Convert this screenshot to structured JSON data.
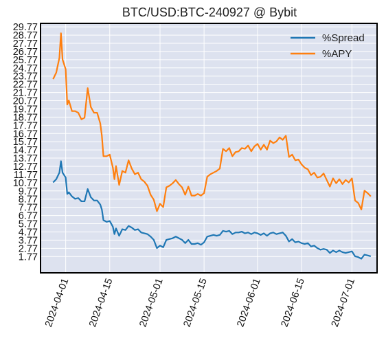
{
  "chart_data": {
    "type": "line",
    "title": "BTC/USD:BTC-240927 @ Bybit",
    "xlabel": "",
    "ylabel": "",
    "legend_position": "top-right",
    "grid": true,
    "background": "#dde2ef",
    "x_ticks": [
      "2024-04-01",
      "2024-04-15",
      "2024-05-01",
      "2024-05-15",
      "2024-06-01",
      "2024-06-15",
      "2024-07-01"
    ],
    "x_range": [
      "2024-03-24",
      "2024-07-09"
    ],
    "y_ticks": [
      "1.77",
      "2.77",
      "3.77",
      "4.77",
      "5.77",
      "6.77",
      "7.77",
      "8.77",
      "9.77",
      "10.77",
      "11.77",
      "12.77",
      "13.77",
      "14.77",
      "15.77",
      "16.77",
      "17.77",
      "18.77",
      "19.77",
      "20.77",
      "21.77",
      "22.77",
      "23.77",
      "24.77",
      "25.77",
      "26.77",
      "27.77",
      "28.77",
      "29.77"
    ],
    "ylim": [
      -0.22,
      30.2
    ],
    "series": [
      {
        "name": "%Spread",
        "color": "#1f77b4",
        "points": [
          [
            "2024-03-28",
            10.8
          ],
          [
            "2024-03-29",
            11.2
          ],
          [
            "2024-03-30",
            12.0
          ],
          [
            "2024-03-30T12",
            13.4
          ],
          [
            "2024-03-31",
            12.0
          ],
          [
            "2024-04-01",
            11.4
          ],
          [
            "2024-04-01T12",
            9.4
          ],
          [
            "2024-04-02",
            9.6
          ],
          [
            "2024-04-03",
            9.1
          ],
          [
            "2024-04-04",
            8.8
          ],
          [
            "2024-04-05",
            8.9
          ],
          [
            "2024-04-06",
            8.5
          ],
          [
            "2024-04-07",
            8.5
          ],
          [
            "2024-04-08",
            10.0
          ],
          [
            "2024-04-09",
            9.0
          ],
          [
            "2024-04-10",
            8.6
          ],
          [
            "2024-04-11",
            8.6
          ],
          [
            "2024-04-12",
            8.1
          ],
          [
            "2024-04-12T12",
            7.5
          ],
          [
            "2024-04-13",
            6.2
          ],
          [
            "2024-04-14",
            6.0
          ],
          [
            "2024-04-15",
            6.1
          ],
          [
            "2024-04-16",
            5.4
          ],
          [
            "2024-04-16T12",
            4.5
          ],
          [
            "2024-04-17",
            5.2
          ],
          [
            "2024-04-18",
            4.3
          ],
          [
            "2024-04-19",
            5.1
          ],
          [
            "2024-04-20",
            5.0
          ],
          [
            "2024-04-21",
            5.5
          ],
          [
            "2024-04-22",
            5.3
          ],
          [
            "2024-04-23",
            5.0
          ],
          [
            "2024-04-24",
            5.1
          ],
          [
            "2024-04-25",
            4.7
          ],
          [
            "2024-04-26",
            4.6
          ],
          [
            "2024-04-27",
            4.5
          ],
          [
            "2024-04-28",
            4.2
          ],
          [
            "2024-04-29",
            3.8
          ],
          [
            "2024-04-30",
            2.8
          ],
          [
            "2024-05-01",
            3.1
          ],
          [
            "2024-05-02",
            2.9
          ],
          [
            "2024-05-03",
            3.8
          ],
          [
            "2024-05-04",
            3.9
          ],
          [
            "2024-05-05",
            4.0
          ],
          [
            "2024-05-06",
            4.2
          ],
          [
            "2024-05-07",
            4.0
          ],
          [
            "2024-05-08",
            3.8
          ],
          [
            "2024-05-09",
            3.4
          ],
          [
            "2024-05-10",
            3.8
          ],
          [
            "2024-05-11",
            3.3
          ],
          [
            "2024-05-12",
            3.3
          ],
          [
            "2024-05-13",
            3.4
          ],
          [
            "2024-05-14",
            3.2
          ],
          [
            "2024-05-15",
            3.5
          ],
          [
            "2024-05-16",
            4.2
          ],
          [
            "2024-05-17",
            4.3
          ],
          [
            "2024-05-18",
            4.4
          ],
          [
            "2024-05-19",
            4.3
          ],
          [
            "2024-05-20",
            4.4
          ],
          [
            "2024-05-21",
            4.9
          ],
          [
            "2024-05-22",
            4.8
          ],
          [
            "2024-05-23",
            4.9
          ],
          [
            "2024-05-24",
            4.5
          ],
          [
            "2024-05-25",
            4.7
          ],
          [
            "2024-05-26",
            4.7
          ],
          [
            "2024-05-27",
            4.8
          ],
          [
            "2024-05-28",
            4.6
          ],
          [
            "2024-05-29",
            4.7
          ],
          [
            "2024-05-30",
            4.5
          ],
          [
            "2024-05-31",
            4.7
          ],
          [
            "2024-06-01",
            4.6
          ],
          [
            "2024-06-02",
            4.4
          ],
          [
            "2024-06-03",
            4.6
          ],
          [
            "2024-06-04",
            4.3
          ],
          [
            "2024-06-05",
            4.6
          ],
          [
            "2024-06-06",
            4.7
          ],
          [
            "2024-06-07",
            4.5
          ],
          [
            "2024-06-08",
            4.6
          ],
          [
            "2024-06-09",
            4.7
          ],
          [
            "2024-06-10",
            4.3
          ],
          [
            "2024-06-11",
            3.6
          ],
          [
            "2024-06-12",
            3.9
          ],
          [
            "2024-06-13",
            3.5
          ],
          [
            "2024-06-14",
            3.6
          ],
          [
            "2024-06-15",
            3.4
          ],
          [
            "2024-06-16",
            3.3
          ],
          [
            "2024-06-17",
            3.4
          ],
          [
            "2024-06-18",
            3.0
          ],
          [
            "2024-06-19",
            3.1
          ],
          [
            "2024-06-20",
            2.8
          ],
          [
            "2024-06-21",
            2.6
          ],
          [
            "2024-06-22",
            2.7
          ],
          [
            "2024-06-23",
            2.6
          ],
          [
            "2024-06-24",
            2.2
          ],
          [
            "2024-06-25",
            2.5
          ],
          [
            "2024-06-26",
            2.3
          ],
          [
            "2024-06-27",
            2.5
          ],
          [
            "2024-06-28",
            2.3
          ],
          [
            "2024-06-29",
            2.2
          ],
          [
            "2024-06-30",
            2.3
          ],
          [
            "2024-07-01",
            2.4
          ],
          [
            "2024-07-02",
            1.8
          ],
          [
            "2024-07-03",
            1.7
          ],
          [
            "2024-07-04",
            1.5
          ],
          [
            "2024-07-05",
            2.0
          ],
          [
            "2024-07-06",
            1.9
          ],
          [
            "2024-07-07",
            1.8
          ]
        ]
      },
      {
        "name": "%APY",
        "color": "#ff7f0e",
        "points": [
          [
            "2024-03-28",
            23.4
          ],
          [
            "2024-03-29",
            24.2
          ],
          [
            "2024-03-30",
            26.0
          ],
          [
            "2024-03-30T12",
            29.0
          ],
          [
            "2024-03-31",
            25.8
          ],
          [
            "2024-04-01",
            24.6
          ],
          [
            "2024-04-01T12",
            20.3
          ],
          [
            "2024-04-02",
            20.8
          ],
          [
            "2024-04-03",
            19.5
          ],
          [
            "2024-04-04",
            19.5
          ],
          [
            "2024-04-05",
            19.3
          ],
          [
            "2024-04-06",
            18.5
          ],
          [
            "2024-04-07",
            18.7
          ],
          [
            "2024-04-08",
            22.3
          ],
          [
            "2024-04-09",
            20.0
          ],
          [
            "2024-04-10",
            19.3
          ],
          [
            "2024-04-11",
            19.3
          ],
          [
            "2024-04-12",
            18.0
          ],
          [
            "2024-04-12T12",
            16.5
          ],
          [
            "2024-04-13",
            14.0
          ],
          [
            "2024-04-14",
            14.0
          ],
          [
            "2024-04-15",
            14.2
          ],
          [
            "2024-04-16",
            12.6
          ],
          [
            "2024-04-16T12",
            11.2
          ],
          [
            "2024-04-17",
            12.8
          ],
          [
            "2024-04-18",
            10.5
          ],
          [
            "2024-04-19",
            12.2
          ],
          [
            "2024-04-20",
            12.0
          ],
          [
            "2024-04-21",
            13.5
          ],
          [
            "2024-04-22",
            12.5
          ],
          [
            "2024-04-23",
            11.8
          ],
          [
            "2024-04-24",
            12.0
          ],
          [
            "2024-04-25",
            11.2
          ],
          [
            "2024-04-26",
            10.9
          ],
          [
            "2024-04-27",
            10.4
          ],
          [
            "2024-04-28",
            9.3
          ],
          [
            "2024-04-29",
            8.7
          ],
          [
            "2024-04-30",
            7.3
          ],
          [
            "2024-05-01",
            8.2
          ],
          [
            "2024-05-02",
            7.8
          ],
          [
            "2024-05-03",
            10.2
          ],
          [
            "2024-05-04",
            10.4
          ],
          [
            "2024-05-05",
            10.7
          ],
          [
            "2024-05-06",
            11.1
          ],
          [
            "2024-05-07",
            10.6
          ],
          [
            "2024-05-08",
            10.2
          ],
          [
            "2024-05-09",
            9.3
          ],
          [
            "2024-05-10",
            10.3
          ],
          [
            "2024-05-11",
            9.2
          ],
          [
            "2024-05-12",
            9.2
          ],
          [
            "2024-05-13",
            9.4
          ],
          [
            "2024-05-14",
            9.2
          ],
          [
            "2024-05-15",
            9.5
          ],
          [
            "2024-05-16",
            11.5
          ],
          [
            "2024-05-17",
            11.8
          ],
          [
            "2024-05-18",
            12.0
          ],
          [
            "2024-05-19",
            12.2
          ],
          [
            "2024-05-20",
            12.5
          ],
          [
            "2024-05-21",
            14.9
          ],
          [
            "2024-05-22",
            14.6
          ],
          [
            "2024-05-23",
            15.0
          ],
          [
            "2024-05-24",
            14.0
          ],
          [
            "2024-05-25",
            14.5
          ],
          [
            "2024-05-26",
            14.6
          ],
          [
            "2024-05-27",
            15.0
          ],
          [
            "2024-05-28",
            14.9
          ],
          [
            "2024-05-29",
            15.3
          ],
          [
            "2024-05-30",
            14.6
          ],
          [
            "2024-05-31",
            15.2
          ],
          [
            "2024-06-01",
            15.5
          ],
          [
            "2024-06-02",
            14.8
          ],
          [
            "2024-06-03",
            15.4
          ],
          [
            "2024-06-04",
            14.8
          ],
          [
            "2024-06-05",
            15.9
          ],
          [
            "2024-06-06",
            15.6
          ],
          [
            "2024-06-07",
            15.8
          ],
          [
            "2024-06-08",
            16.3
          ],
          [
            "2024-06-09",
            16.0
          ],
          [
            "2024-06-10",
            16.5
          ],
          [
            "2024-06-11",
            13.9
          ],
          [
            "2024-06-12",
            14.2
          ],
          [
            "2024-06-13",
            13.5
          ],
          [
            "2024-06-14",
            13.6
          ],
          [
            "2024-06-15",
            13.0
          ],
          [
            "2024-06-16",
            12.6
          ],
          [
            "2024-06-17",
            12.4
          ],
          [
            "2024-06-18",
            11.7
          ],
          [
            "2024-06-19",
            12.0
          ],
          [
            "2024-06-20",
            11.4
          ],
          [
            "2024-06-21",
            11.5
          ],
          [
            "2024-06-22",
            11.9
          ],
          [
            "2024-06-23",
            11.1
          ],
          [
            "2024-06-24",
            10.3
          ],
          [
            "2024-06-25",
            11.3
          ],
          [
            "2024-06-26",
            10.7
          ],
          [
            "2024-06-27",
            11.2
          ],
          [
            "2024-06-28",
            10.6
          ],
          [
            "2024-06-29",
            11.1
          ],
          [
            "2024-06-30",
            10.8
          ],
          [
            "2024-07-01",
            11.3
          ],
          [
            "2024-07-02",
            8.6
          ],
          [
            "2024-07-03",
            8.3
          ],
          [
            "2024-07-04",
            7.5
          ],
          [
            "2024-07-05",
            9.8
          ],
          [
            "2024-07-06",
            9.5
          ],
          [
            "2024-07-07",
            9.1
          ]
        ]
      }
    ]
  }
}
